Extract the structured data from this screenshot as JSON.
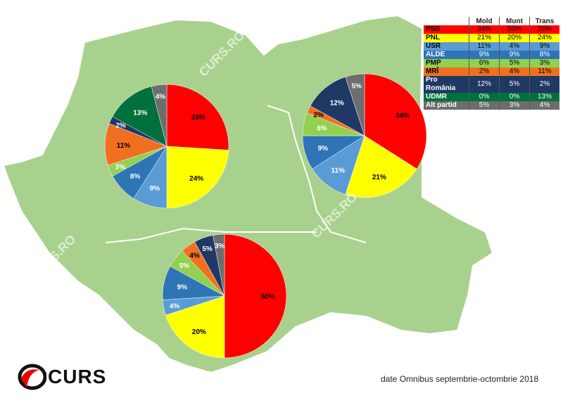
{
  "map": {
    "fill": "#a9d18e",
    "border": "#ffffff"
  },
  "watermark": "CURS.RO",
  "logo": "CURS",
  "footer": "date Omnibus septembrie-octombrie 2018",
  "table": {
    "columns": [
      "Mold",
      "Munt",
      "Trans"
    ],
    "rows": [
      {
        "party": "PSD",
        "color": "#ff0000",
        "text": "#000000",
        "values": [
          "34%",
          "50%",
          "26%"
        ]
      },
      {
        "party": "PNL",
        "color": "#ffff00",
        "text": "#000000",
        "values": [
          "21%",
          "20%",
          "24%"
        ]
      },
      {
        "party": "USR",
        "color": "#5b9bd5",
        "text": "#000000",
        "values": [
          "11%",
          "4%",
          "9%"
        ]
      },
      {
        "party": "ALDE",
        "color": "#2e75b6",
        "text": "#ffffff",
        "values": [
          "9%",
          "9%",
          "8%"
        ]
      },
      {
        "party": "PMP",
        "color": "#92d050",
        "text": "#000000",
        "values": [
          "6%",
          "5%",
          "3%"
        ]
      },
      {
        "party": "MRÎ",
        "color": "#f07020",
        "text": "#000000",
        "values": [
          "2%",
          "4%",
          "11%"
        ]
      },
      {
        "party": "Pro România",
        "color": "#1f3864",
        "text": "#ffffff",
        "values": [
          "12%",
          "5%",
          "2%"
        ]
      },
      {
        "party": "UDMR",
        "color": "#00703c",
        "text": "#ffffff",
        "values": [
          "0%",
          "0%",
          "13%"
        ]
      },
      {
        "party": "Alt partid",
        "color": "#6d6d6d",
        "text": "#ffffff",
        "values": [
          "5%",
          "3%",
          "4%"
        ]
      }
    ]
  },
  "chart_data": [
    {
      "type": "pie",
      "region": "Trans",
      "categories": [
        "PSD",
        "PNL",
        "USR",
        "ALDE",
        "PMP",
        "MRÎ",
        "Pro România",
        "UDMR",
        "Alt partid"
      ],
      "values": [
        26,
        24,
        9,
        8,
        3,
        11,
        2,
        13,
        4
      ]
    },
    {
      "type": "pie",
      "region": "Mold",
      "categories": [
        "PSD",
        "PNL",
        "USR",
        "ALDE",
        "PMP",
        "MRÎ",
        "Pro România",
        "UDMR",
        "Alt partid"
      ],
      "values": [
        34,
        21,
        11,
        9,
        6,
        2,
        12,
        0,
        5
      ]
    },
    {
      "type": "pie",
      "region": "Munt",
      "categories": [
        "PSD",
        "PNL",
        "USR",
        "ALDE",
        "PMP",
        "MRÎ",
        "Pro România",
        "UDMR",
        "Alt partid"
      ],
      "values": [
        50,
        20,
        4,
        9,
        5,
        4,
        5,
        0,
        3
      ]
    }
  ]
}
